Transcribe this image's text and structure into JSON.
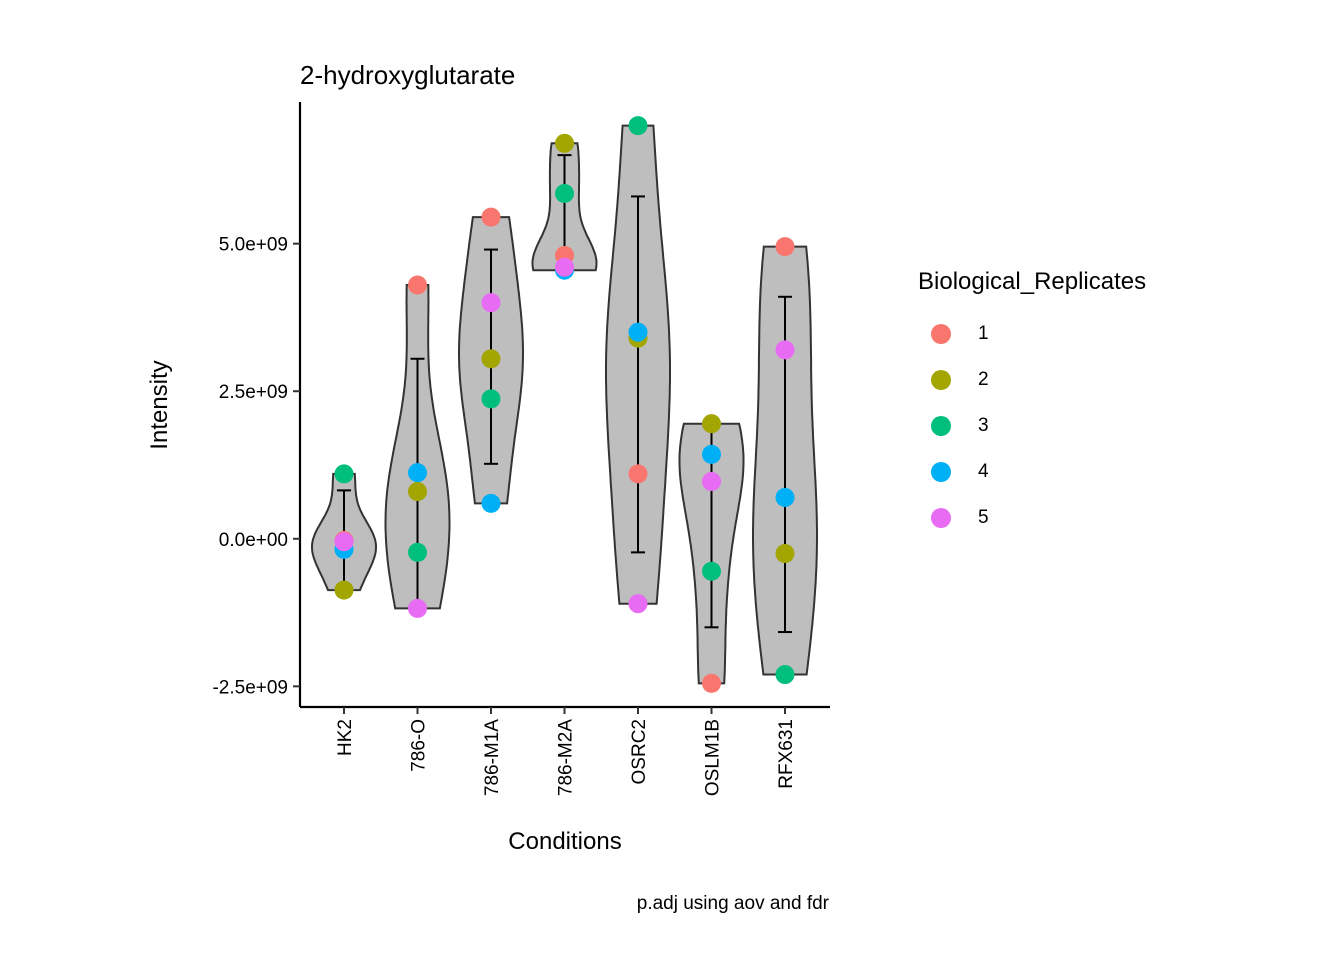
{
  "chart_data": {
    "type": "violin",
    "title": "2-hydroxyglutarate",
    "xlabel": "Conditions",
    "ylabel": "Intensity",
    "caption": "p.adj using  aov and fdr",
    "ylim": [
      -2850000000.0,
      7400000000.0
    ],
    "y_ticks": [
      -2500000000.0,
      0,
      2500000000.0,
      5000000000.0
    ],
    "y_tick_labels": [
      "-2.5e+09",
      "0.0e+00",
      "2.5e+09",
      "5.0e+09"
    ],
    "categories": [
      "HK2",
      "786-O",
      "786-M1A",
      "786-M2A",
      "OSRC2",
      "OSLM1B",
      "RFX631"
    ],
    "legend": {
      "title": "Biological_Replicates",
      "entries": [
        {
          "label": "1",
          "color": "#F8766D"
        },
        {
          "label": "2",
          "color": "#A3A500"
        },
        {
          "label": "3",
          "color": "#00BF7D"
        },
        {
          "label": "4",
          "color": "#00B0F6"
        },
        {
          "label": "5",
          "color": "#E76BF3"
        }
      ]
    },
    "series": [
      {
        "name": "1",
        "values": [
          -30000000.0,
          4300000000.0,
          5450000000.0,
          4800000000.0,
          1100000000.0,
          -2450000000.0,
          4950000000.0
        ]
      },
      {
        "name": "2",
        "values": [
          -870000000.0,
          800000000.0,
          3050000000.0,
          6700000000.0,
          3400000000.0,
          1950000000.0,
          -250000000.0
        ]
      },
      {
        "name": "3",
        "values": [
          1100000000.0,
          -230000000.0,
          2370000000.0,
          5850000000.0,
          7000000000.0,
          -550000000.0,
          -2300000000.0
        ]
      },
      {
        "name": "4",
        "values": [
          -180000000.0,
          1120000000.0,
          600000000.0,
          4550000000.0,
          3500000000.0,
          1430000000.0,
          700000000.0
        ]
      },
      {
        "name": "5",
        "values": [
          -50000000.0,
          -1180000000.0,
          4000000000.0,
          4600000000.0,
          -1100000000.0,
          970000000.0,
          3200000000.0
        ]
      }
    ],
    "summary": [
      {
        "category": "HK2",
        "mean": 0.0,
        "lower": -820000000.0,
        "upper": 820000000.0
      },
      {
        "category": "786-O",
        "mean": 960000000.0,
        "lower": -1100000000.0,
        "upper": 3050000000.0
      },
      {
        "category": "786-M1A",
        "mean": 3090000000.0,
        "lower": 1270000000.0,
        "upper": 4900000000.0
      },
      {
        "category": "786-M2A",
        "mean": 5500000000.0,
        "lower": 4550000000.0,
        "upper": 6500000000.0
      },
      {
        "category": "OSRC2",
        "mean": 2780000000.0,
        "lower": -230000000.0,
        "upper": 5800000000.0
      },
      {
        "category": "OSLM1B",
        "mean": 270000000.0,
        "lower": -1500000000.0,
        "upper": 2040000000.0
      },
      {
        "category": "RFX631",
        "mean": 1260000000.0,
        "lower": -1580000000.0,
        "upper": 4100000000.0
      }
    ]
  }
}
